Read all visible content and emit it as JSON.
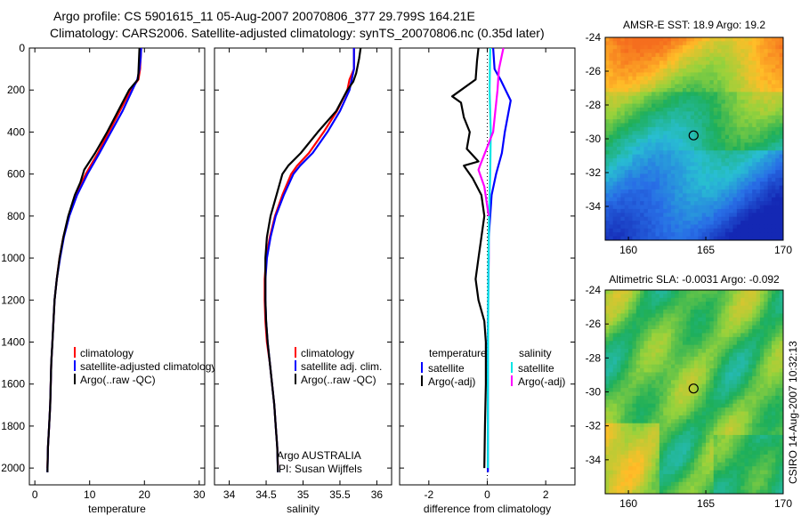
{
  "figure": {
    "title_line1": "Argo profile: CS 5901615_11 05-Aug-2007 20070806_377 29.799S 164.21E",
    "title_line2": "Climatology: CARS2006. Satellite-adjusted climatology: synTS_20070806.nc (0.35d later)",
    "side_stamp": "CSIRO 14-Aug-2007 10:32:13",
    "colors": {
      "climatology": "#ff0000",
      "satellite": "#0000ff",
      "argo": "#000000",
      "sat_diff": "#00e5e5",
      "argo_sal_diff": "#ff00ff"
    }
  },
  "chart_data": [
    {
      "type": "line",
      "xlabel": "temperature",
      "xlim": [
        -1,
        31
      ],
      "xticks": [
        0,
        10,
        20,
        30
      ],
      "ylim": [
        2080,
        0
      ],
      "yticks": [
        0,
        200,
        400,
        600,
        800,
        1000,
        1200,
        1400,
        1600,
        1800,
        2000
      ],
      "grid": false,
      "legend": {
        "entries": [
          "climatology",
          "satellite-adjusted climatology",
          "Argo(..raw -QC)"
        ],
        "placement": "lower-center"
      },
      "series": [
        {
          "name": "climatology",
          "color": "#ff0000",
          "points": [
            [
              19.4,
              0
            ],
            [
              19.3,
              50
            ],
            [
              19.2,
              100
            ],
            [
              18.9,
              150
            ],
            [
              17.5,
              200
            ],
            [
              15.5,
              300
            ],
            [
              13.5,
              400
            ],
            [
              11.5,
              500
            ],
            [
              9.3,
              600
            ],
            [
              7.5,
              700
            ],
            [
              6.2,
              800
            ],
            [
              5.2,
              900
            ],
            [
              4.5,
              1000
            ],
            [
              4.0,
              1100
            ],
            [
              3.6,
              1200
            ],
            [
              3.4,
              1300
            ],
            [
              3.2,
              1400
            ],
            [
              3.0,
              1500
            ],
            [
              2.9,
              1600
            ],
            [
              2.8,
              1700
            ],
            [
              2.6,
              1800
            ],
            [
              2.4,
              1900
            ],
            [
              2.3,
              2000
            ]
          ]
        },
        {
          "name": "satellite-adjusted climatology",
          "color": "#0000ff",
          "points": [
            [
              19.4,
              0
            ],
            [
              19.3,
              50
            ],
            [
              19.1,
              100
            ],
            [
              18.7,
              150
            ],
            [
              17.8,
              200
            ],
            [
              16.0,
              300
            ],
            [
              13.9,
              400
            ],
            [
              11.8,
              500
            ],
            [
              9.6,
              600
            ],
            [
              7.7,
              700
            ],
            [
              6.3,
              800
            ],
            [
              5.3,
              900
            ],
            [
              4.6,
              1000
            ],
            [
              4.0,
              1100
            ],
            [
              3.6,
              1200
            ],
            [
              3.4,
              1300
            ],
            [
              3.2,
              1400
            ],
            [
              3.0,
              1500
            ],
            [
              2.9,
              1600
            ],
            [
              2.8,
              1700
            ],
            [
              2.6,
              1800
            ],
            [
              2.4,
              1900
            ],
            [
              2.3,
              2020
            ]
          ]
        },
        {
          "name": "Argo(..raw -QC)",
          "color": "#000000",
          "points": [
            [
              19.1,
              0
            ],
            [
              19.0,
              60
            ],
            [
              18.9,
              120
            ],
            [
              18.8,
              150
            ],
            [
              17.2,
              200
            ],
            [
              15.2,
              300
            ],
            [
              13.2,
              400
            ],
            [
              11.0,
              500
            ],
            [
              9.0,
              580
            ],
            [
              8.3,
              640
            ],
            [
              7.3,
              700
            ],
            [
              6.1,
              800
            ],
            [
              5.2,
              900
            ],
            [
              4.5,
              1000
            ],
            [
              4.0,
              1100
            ],
            [
              3.6,
              1200
            ],
            [
              3.4,
              1300
            ],
            [
              3.2,
              1400
            ],
            [
              3.0,
              1500
            ],
            [
              2.9,
              1600
            ],
            [
              2.8,
              1700
            ],
            [
              2.6,
              1800
            ],
            [
              2.4,
              1900
            ],
            [
              2.3,
              2020
            ]
          ]
        }
      ]
    },
    {
      "type": "line",
      "xlabel": "salinity",
      "xlim": [
        33.8,
        36.2
      ],
      "xticks": [
        34,
        34.5,
        35,
        35.5,
        36
      ],
      "ylim": [
        2080,
        0
      ],
      "yticks": [
        0,
        200,
        400,
        600,
        800,
        1000,
        1200,
        1400,
        1600,
        1800,
        2000
      ],
      "grid": false,
      "legend": {
        "entries": [
          "climatology",
          "satellite adj. clim.",
          "Argo(..raw -QC)"
        ],
        "placement": "lower-right"
      },
      "annotation": [
        "Argo AUSTRALIA",
        "PI: Susan Wijffels"
      ],
      "series": [
        {
          "name": "climatology",
          "color": "#ff0000",
          "points": [
            [
              35.69,
              0
            ],
            [
              35.69,
              100
            ],
            [
              35.63,
              150
            ],
            [
              35.6,
              200
            ],
            [
              35.46,
              300
            ],
            [
              35.28,
              400
            ],
            [
              35.08,
              500
            ],
            [
              34.92,
              560
            ],
            [
              34.84,
              600
            ],
            [
              34.72,
              700
            ],
            [
              34.62,
              800
            ],
            [
              34.55,
              900
            ],
            [
              34.5,
              1000
            ],
            [
              34.48,
              1100
            ],
            [
              34.48,
              1200
            ],
            [
              34.49,
              1300
            ],
            [
              34.51,
              1400
            ],
            [
              34.55,
              1500
            ],
            [
              34.58,
              1600
            ],
            [
              34.61,
              1700
            ],
            [
              34.63,
              1800
            ],
            [
              34.65,
              1900
            ],
            [
              34.66,
              2000
            ]
          ]
        },
        {
          "name": "satellite adj. clim.",
          "color": "#0000ff",
          "points": [
            [
              35.69,
              0
            ],
            [
              35.69,
              100
            ],
            [
              35.66,
              150
            ],
            [
              35.63,
              200
            ],
            [
              35.5,
              300
            ],
            [
              35.33,
              400
            ],
            [
              35.13,
              500
            ],
            [
              34.96,
              560
            ],
            [
              34.87,
              600
            ],
            [
              34.74,
              700
            ],
            [
              34.63,
              800
            ],
            [
              34.56,
              900
            ],
            [
              34.51,
              1000
            ],
            [
              34.49,
              1100
            ],
            [
              34.49,
              1200
            ],
            [
              34.5,
              1300
            ],
            [
              34.52,
              1400
            ],
            [
              34.55,
              1500
            ],
            [
              34.58,
              1600
            ],
            [
              34.61,
              1700
            ],
            [
              34.63,
              1800
            ],
            [
              34.65,
              1900
            ],
            [
              34.66,
              2020
            ]
          ]
        },
        {
          "name": "Argo(..raw -QC)",
          "color": "#000000",
          "points": [
            [
              35.78,
              0
            ],
            [
              35.76,
              50
            ],
            [
              35.72,
              120
            ],
            [
              35.68,
              160
            ],
            [
              35.6,
              200
            ],
            [
              35.45,
              300
            ],
            [
              35.2,
              400
            ],
            [
              34.97,
              500
            ],
            [
              34.8,
              560
            ],
            [
              34.72,
              600
            ],
            [
              34.64,
              700
            ],
            [
              34.56,
              800
            ],
            [
              34.51,
              900
            ],
            [
              34.49,
              1000
            ],
            [
              34.49,
              1100
            ],
            [
              34.49,
              1200
            ],
            [
              34.5,
              1300
            ],
            [
              34.52,
              1400
            ],
            [
              34.55,
              1500
            ],
            [
              34.58,
              1600
            ],
            [
              34.61,
              1700
            ],
            [
              34.63,
              1800
            ],
            [
              34.65,
              1900
            ],
            [
              34.66,
              2020
            ]
          ]
        }
      ]
    },
    {
      "type": "line",
      "xlabel": "difference from climatology",
      "xlim": [
        -3,
        3
      ],
      "xticks": [
        -2,
        0,
        2
      ],
      "ylim": [
        2080,
        0
      ],
      "yticks": [
        0,
        200,
        400,
        600,
        800,
        1000,
        1200,
        1400,
        1600,
        1800,
        2000
      ],
      "zero_line": "dotted",
      "grid": false,
      "legend": {
        "entries": [
          "temperature",
          "satellite",
          "Argo(-adj)",
          "salinity",
          "satellite",
          "Argo(-adj)"
        ],
        "placement": "lower-center"
      },
      "series": [
        {
          "name": "temperature satellite",
          "color": "#0000ff",
          "points": [
            [
              0.2,
              0
            ],
            [
              0.25,
              100
            ],
            [
              0.45,
              150
            ],
            [
              0.8,
              250
            ],
            [
              0.6,
              400
            ],
            [
              0.5,
              500
            ],
            [
              0.3,
              600
            ],
            [
              0.15,
              700
            ],
            [
              0.1,
              800
            ],
            [
              0.05,
              900
            ],
            [
              0.05,
              1000
            ],
            [
              0.03,
              1200
            ],
            [
              0.02,
              1500
            ],
            [
              0.02,
              2020
            ]
          ]
        },
        {
          "name": "temperature Argo(-adj)",
          "color": "#000000",
          "points": [
            [
              -0.3,
              0
            ],
            [
              -0.35,
              60
            ],
            [
              -0.4,
              150
            ],
            [
              -0.9,
              200
            ],
            [
              -1.2,
              230
            ],
            [
              -0.9,
              260
            ],
            [
              -0.8,
              330
            ],
            [
              -0.6,
              400
            ],
            [
              -0.7,
              480
            ],
            [
              -0.3,
              540
            ],
            [
              -0.8,
              560
            ],
            [
              -0.5,
              620
            ],
            [
              -0.2,
              700
            ],
            [
              -0.1,
              800
            ],
            [
              -0.2,
              900
            ],
            [
              -0.3,
              1000
            ],
            [
              -0.4,
              1100
            ],
            [
              -0.3,
              1200
            ],
            [
              -0.1,
              1300
            ],
            [
              -0.05,
              1400
            ],
            [
              -0.05,
              1600
            ],
            [
              -0.08,
              1800
            ],
            [
              -0.1,
              2000
            ]
          ]
        },
        {
          "name": "salinity satellite",
          "color": "#00e5e5",
          "points": [
            [
              0.1,
              0
            ],
            [
              0.08,
              200
            ],
            [
              0.12,
              400
            ],
            [
              0.1,
              600
            ],
            [
              0.06,
              800
            ],
            [
              0.04,
              1000
            ],
            [
              0.03,
              1300
            ],
            [
              0.02,
              1600
            ],
            [
              0.02,
              2000
            ]
          ]
        },
        {
          "name": "salinity Argo(-adj)",
          "color": "#ff00ff",
          "points": [
            [
              0.55,
              0
            ],
            [
              0.4,
              100
            ],
            [
              0.35,
              200
            ],
            [
              0.2,
              400
            ],
            [
              -0.25,
              560
            ],
            [
              -0.3,
              580
            ],
            [
              -0.1,
              660
            ],
            [
              0.05,
              800
            ]
          ]
        }
      ]
    },
    {
      "type": "heatmap",
      "title": "AMSR-E SST: 18.9 Argo: 19.2",
      "xlim": [
        158.5,
        170
      ],
      "xticks": [
        160,
        165,
        170
      ],
      "ylim": [
        -36,
        -24
      ],
      "yticks": [
        -24,
        -26,
        -28,
        -30,
        -32,
        -34
      ],
      "marker": {
        "lon": 164.21,
        "lat": -29.8
      }
    },
    {
      "type": "heatmap",
      "title": "Altimetric SLA: -0.0031 Argo: -0.092",
      "xlim": [
        158.5,
        170
      ],
      "xticks": [
        160,
        165,
        170
      ],
      "ylim": [
        -36,
        -24
      ],
      "yticks": [
        -24,
        -26,
        -28,
        -30,
        -32,
        -34
      ],
      "marker": {
        "lon": 164.21,
        "lat": -29.8
      }
    }
  ]
}
